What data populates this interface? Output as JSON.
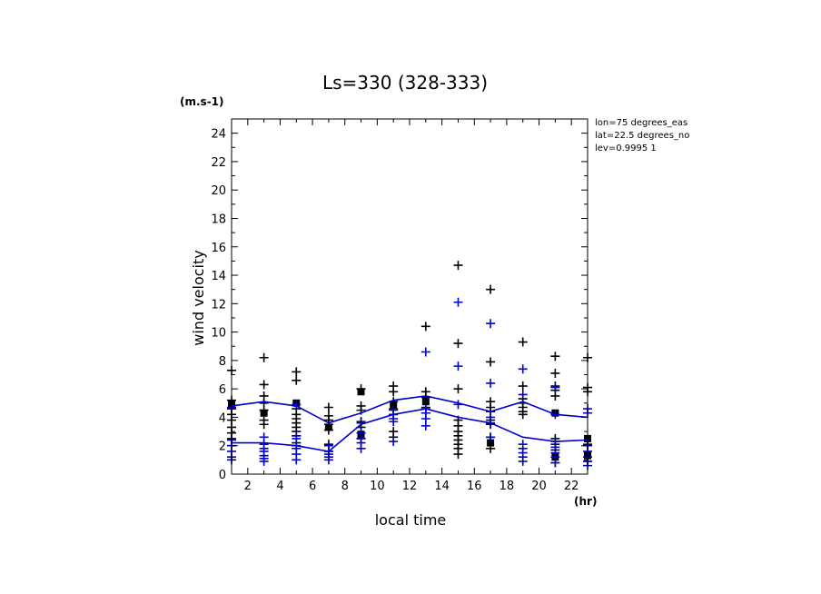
{
  "chart_data": {
    "type": "scatter",
    "title": "Ls=330 (328-333)",
    "ylabel": "wind velocity",
    "yunit": "(m.s-1)",
    "xlabel": "local time",
    "xunit": "(hr)",
    "info": [
      "lon=75 degrees_eas",
      "lat=22.5 degrees_no",
      "lev=0.9995 1"
    ],
    "xlim": [
      1,
      23
    ],
    "ylim": [
      0,
      25
    ],
    "xticks": [
      2,
      4,
      6,
      8,
      10,
      12,
      14,
      16,
      18,
      20,
      22
    ],
    "yticks": [
      0,
      2,
      4,
      6,
      8,
      10,
      12,
      14,
      16,
      18,
      20,
      22,
      24
    ],
    "x": [
      1,
      3,
      5,
      7,
      9,
      11,
      13,
      15,
      17,
      19,
      21,
      23
    ],
    "series": [
      {
        "kind": "points",
        "color": "#000000",
        "points": [
          [
            [
              1,
              4.9,
              "sq"
            ],
            [
              1,
              4.6
            ],
            [
              1,
              5.2
            ],
            [
              1,
              4.2
            ],
            [
              1,
              3.8
            ],
            [
              1,
              3.3
            ],
            [
              1,
              2.9
            ],
            [
              1,
              2.5
            ],
            [
              1,
              7.3
            ]
          ],
          [
            [
              3,
              8.2
            ],
            [
              3,
              6.3
            ],
            [
              3,
              5.5
            ],
            [
              3,
              5.0
            ],
            [
              3,
              4.5
            ],
            [
              3,
              4.3,
              "sq"
            ],
            [
              3,
              3.8
            ],
            [
              3,
              3.5
            ]
          ],
          [
            [
              5,
              7.2
            ],
            [
              5,
              6.6
            ],
            [
              5,
              5.0,
              "sq"
            ],
            [
              5,
              4.6
            ],
            [
              5,
              4.2
            ],
            [
              5,
              3.9
            ],
            [
              5,
              3.6
            ],
            [
              5,
              3.3
            ],
            [
              5,
              3.0
            ],
            [
              5,
              2.7
            ],
            [
              5,
              2.2
            ]
          ],
          [
            [
              7,
              4.7
            ],
            [
              7,
              4.1
            ],
            [
              7,
              3.8
            ],
            [
              7,
              3.5
            ],
            [
              7,
              3.3,
              "sq"
            ],
            [
              7,
              3.1
            ],
            [
              7,
              2.1
            ],
            [
              7,
              1.6
            ]
          ],
          [
            [
              9,
              6.0
            ],
            [
              9,
              5.8,
              "sq"
            ],
            [
              9,
              4.8
            ],
            [
              9,
              4.5
            ],
            [
              9,
              3.7
            ],
            [
              9,
              3.3
            ],
            [
              9,
              2.8,
              "sq"
            ],
            [
              9,
              2.5
            ]
          ],
          [
            [
              11,
              6.2
            ],
            [
              11,
              5.8
            ],
            [
              11,
              5.1
            ],
            [
              11,
              4.9,
              "sq"
            ],
            [
              11,
              4.6
            ],
            [
              11,
              4.2
            ],
            [
              11,
              3.0
            ],
            [
              11,
              2.6
            ]
          ],
          [
            [
              13,
              10.4
            ],
            [
              13,
              5.8
            ],
            [
              13,
              5.4
            ],
            [
              13,
              5.1,
              "sq"
            ],
            [
              13,
              4.7
            ],
            [
              13,
              4.3
            ]
          ],
          [
            [
              15,
              14.7
            ],
            [
              15,
              9.2
            ],
            [
              15,
              6.0
            ],
            [
              15,
              3.8
            ],
            [
              15,
              3.4
            ],
            [
              15,
              3.0
            ],
            [
              15,
              2.7
            ],
            [
              15,
              2.4
            ],
            [
              15,
              2.1
            ],
            [
              15,
              1.8
            ],
            [
              15,
              1.4
            ]
          ],
          [
            [
              17,
              13.0
            ],
            [
              17,
              7.9
            ],
            [
              17,
              5.1
            ],
            [
              17,
              4.7
            ],
            [
              17,
              4.4
            ],
            [
              17,
              3.8
            ],
            [
              17,
              3.5
            ],
            [
              17,
              2.6
            ],
            [
              17,
              2.2,
              "sq"
            ],
            [
              17,
              1.8
            ]
          ],
          [
            [
              19,
              9.3
            ],
            [
              19,
              6.2
            ],
            [
              19,
              5.3
            ],
            [
              19,
              5.0
            ],
            [
              19,
              4.7
            ],
            [
              19,
              4.4
            ],
            [
              19,
              4.2
            ]
          ],
          [
            [
              21,
              8.3
            ],
            [
              21,
              7.1
            ],
            [
              21,
              6.2
            ],
            [
              21,
              5.9
            ],
            [
              21,
              5.5
            ],
            [
              21,
              4.3,
              "sq"
            ],
            [
              21,
              2.5
            ],
            [
              21,
              2.1
            ],
            [
              21,
              1.7
            ],
            [
              21,
              1.2,
              "sq"
            ],
            [
              21,
              0.8
            ]
          ],
          [
            [
              23,
              8.2
            ],
            [
              23,
              6.1
            ],
            [
              23,
              5.8
            ],
            [
              23,
              2.5,
              "sq"
            ],
            [
              23,
              2.1
            ],
            [
              23,
              1.3,
              "sq"
            ],
            [
              23,
              0.9
            ]
          ]
        ]
      },
      {
        "kind": "points",
        "color": "#0000cc",
        "points": [
          [
            [
              1,
              2.4
            ],
            [
              1,
              2.0
            ],
            [
              1,
              1.6
            ],
            [
              1,
              1.2
            ],
            [
              1,
              1.0
            ],
            [
              1,
              4.7
            ]
          ],
          [
            [
              3,
              2.6
            ],
            [
              3,
              2.1
            ],
            [
              3,
              1.8
            ],
            [
              3,
              1.6
            ],
            [
              3,
              1.3
            ],
            [
              3,
              1.1
            ],
            [
              3,
              0.9
            ]
          ],
          [
            [
              5,
              4.9
            ],
            [
              5,
              2.7
            ],
            [
              5,
              2.5
            ],
            [
              5,
              2.0
            ],
            [
              5,
              1.8
            ],
            [
              5,
              1.4
            ],
            [
              5,
              1.0
            ]
          ],
          [
            [
              7,
              2.0
            ],
            [
              7,
              1.6
            ],
            [
              7,
              1.4
            ],
            [
              7,
              1.2
            ],
            [
              7,
              1.0
            ]
          ],
          [
            [
              9,
              3.6
            ],
            [
              9,
              2.9
            ],
            [
              9,
              2.5
            ],
            [
              9,
              2.2
            ],
            [
              9,
              1.8
            ]
          ],
          [
            [
              11,
              4.5
            ],
            [
              11,
              4.2
            ],
            [
              11,
              3.9
            ],
            [
              11,
              3.7
            ],
            [
              11,
              2.3
            ]
          ],
          [
            [
              13,
              8.6
            ],
            [
              13,
              4.6
            ],
            [
              13,
              4.3
            ],
            [
              13,
              3.9
            ],
            [
              13,
              3.4
            ]
          ],
          [
            [
              15,
              12.1
            ],
            [
              15,
              7.6
            ],
            [
              15,
              4.9
            ]
          ],
          [
            [
              17,
              10.6
            ],
            [
              17,
              6.4
            ],
            [
              17,
              4.0
            ],
            [
              17,
              3.6
            ],
            [
              17,
              2.6
            ]
          ],
          [
            [
              19,
              7.4
            ],
            [
              19,
              5.6
            ],
            [
              19,
              2.1
            ],
            [
              19,
              1.8
            ],
            [
              19,
              1.5
            ],
            [
              19,
              1.2
            ],
            [
              19,
              0.9
            ]
          ],
          [
            [
              21,
              6.1
            ],
            [
              21,
              4.2
            ],
            [
              21,
              2.3
            ],
            [
              21,
              1.9
            ],
            [
              21,
              1.5
            ],
            [
              21,
              1.2
            ],
            [
              21,
              0.8
            ]
          ],
          [
            [
              23,
              4.6
            ],
            [
              23,
              4.3
            ],
            [
              23,
              2.0
            ],
            [
              23,
              1.6
            ],
            [
              23,
              1.2
            ],
            [
              23,
              0.9
            ],
            [
              23,
              0.6
            ]
          ]
        ]
      },
      {
        "kind": "line",
        "color": "#0000cc",
        "values": [
          4.8,
          5.1,
          4.8,
          3.6,
          4.3,
          5.2,
          5.5,
          5.0,
          4.4,
          5.1,
          4.2,
          4.0
        ]
      },
      {
        "kind": "line",
        "color": "#0000cc",
        "values": [
          2.2,
          2.2,
          2.0,
          1.6,
          3.5,
          4.2,
          4.6,
          4.0,
          3.6,
          2.6,
          2.3,
          2.4
        ]
      }
    ]
  }
}
